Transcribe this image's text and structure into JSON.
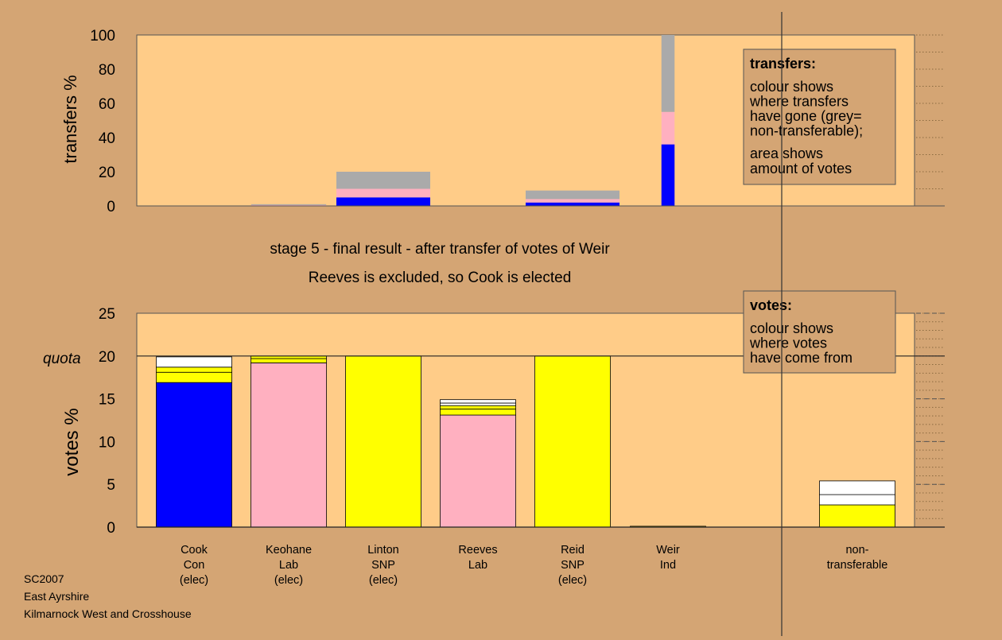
{
  "chart_data": [
    {
      "type": "bar",
      "stacked": true,
      "ylabel": "transfers %",
      "ylim": [
        0,
        100
      ],
      "yticks": [
        0,
        20,
        40,
        60,
        80,
        100
      ],
      "grid": "dotted horizontal",
      "columns": [
        "Cook",
        "Keohane",
        "Linton",
        "Reeves",
        "Reid",
        "Weir"
      ],
      "series_colors": {
        "Con": "#0000ff",
        "Lab": "#ffb0c0",
        "non-transferable": "#aaaaaa"
      },
      "bars": [
        {
          "column": "Cook",
          "width_votes": 0,
          "segments": []
        },
        {
          "column": "Keohane",
          "width_votes": 0.8,
          "segments": [
            {
              "color": "#ffb0c0",
              "from": 0,
              "to": 0.5
            },
            {
              "color": "#aaaaaa",
              "from": 0.5,
              "to": 1
            }
          ]
        },
        {
          "column": "Linton",
          "width_votes": 1,
          "segments": [
            {
              "color": "#0000ff",
              "from": 0,
              "to": 5
            },
            {
              "color": "#ffb0c0",
              "from": 5,
              "to": 10
            },
            {
              "color": "#aaaaaa",
              "from": 10,
              "to": 20
            }
          ]
        },
        {
          "column": "Reeves",
          "width_votes": 0,
          "segments": []
        },
        {
          "column": "Reid",
          "width_votes": 1,
          "segments": [
            {
              "color": "#0000ff",
              "from": 0,
              "to": 2
            },
            {
              "color": "#ffb0c0",
              "from": 2,
              "to": 4
            },
            {
              "color": "#aaaaaa",
              "from": 4,
              "to": 9
            }
          ]
        },
        {
          "column": "Weir",
          "width_votes": 0.14,
          "segments": [
            {
              "color": "#0000ff",
              "from": 0,
              "to": 36
            },
            {
              "color": "#ffb0c0",
              "from": 36,
              "to": 55
            },
            {
              "color": "#aaaaaa",
              "from": 55,
              "to": 100
            }
          ]
        }
      ],
      "legend_box": {
        "title": "transfers:",
        "lines1": [
          "colour shows",
          "where transfers",
          "have gone (grey=",
          "non-transferable);"
        ],
        "lines2": [
          "area shows",
          "amount of votes"
        ]
      }
    },
    {
      "type": "bar",
      "stacked": true,
      "ylabel": "votes %",
      "ylim": [
        0,
        25
      ],
      "yticks": [
        0,
        5,
        10,
        15,
        20,
        25
      ],
      "quota": 20,
      "quota_label": "quota",
      "grid": "dotted horizontal",
      "categories": [
        {
          "lines": [
            "Cook",
            "Con",
            "(elec)"
          ]
        },
        {
          "lines": [
            "Keohane",
            "Lab",
            "(elec)"
          ]
        },
        {
          "lines": [
            "Linton",
            "SNP",
            "(elec)"
          ]
        },
        {
          "lines": [
            "Reeves",
            "Lab"
          ]
        },
        {
          "lines": [
            "Reid",
            "SNP",
            "(elec)"
          ]
        },
        {
          "lines": [
            "Weir",
            "Ind"
          ]
        },
        {
          "lines": [
            "non-",
            "transferable"
          ]
        }
      ],
      "bars": [
        {
          "candidate": "Cook",
          "segments": [
            {
              "color": "#0000ff",
              "from": 0,
              "to": 16.9
            },
            {
              "color": "#ffff00",
              "from": 16.9,
              "to": 18.1
            },
            {
              "color": "#ffff00",
              "from": 18.1,
              "to": 18.7
            },
            {
              "color": "#ffffff",
              "from": 18.7,
              "to": 19.9
            }
          ]
        },
        {
          "candidate": "Keohane",
          "segments": [
            {
              "color": "#ffb0c0",
              "from": 0,
              "to": 19.2
            },
            {
              "color": "#ffff00",
              "from": 19.2,
              "to": 19.7
            },
            {
              "color": "#ffff00",
              "from": 19.7,
              "to": 20
            }
          ]
        },
        {
          "candidate": "Linton",
          "segments": [
            {
              "color": "#ffff00",
              "from": 0,
              "to": 20
            }
          ]
        },
        {
          "candidate": "Reeves",
          "segments": [
            {
              "color": "#ffb0c0",
              "from": 0,
              "to": 13.1
            },
            {
              "color": "#ffff00",
              "from": 13.1,
              "to": 13.8
            },
            {
              "color": "#ffff00",
              "from": 13.8,
              "to": 14.2
            },
            {
              "color": "#ffffff",
              "from": 14.2,
              "to": 14.5
            },
            {
              "color": "#ffffff",
              "from": 14.5,
              "to": 14.9
            }
          ]
        },
        {
          "candidate": "Reid",
          "segments": [
            {
              "color": "#ffff00",
              "from": 0,
              "to": 20
            }
          ]
        },
        {
          "candidate": "Weir",
          "segments": [
            {
              "color": "#ffff00",
              "from": 0,
              "to": 0.1
            }
          ]
        },
        {
          "candidate": "non-transferable",
          "segments": [
            {
              "color": "#ffff00",
              "from": 0,
              "to": 2.6
            },
            {
              "color": "#ffffff",
              "from": 2.6,
              "to": 3.8
            },
            {
              "color": "#ffffff",
              "from": 3.8,
              "to": 5.4
            }
          ]
        }
      ],
      "legend_box": {
        "title": "votes:",
        "lines": [
          "colour shows",
          "where votes",
          "have come from"
        ]
      }
    }
  ],
  "title_line1": "stage 5 - final result - after transfer of votes of Weir",
  "title_line2": "Reeves is excluded, so Cook is elected",
  "footer": [
    "SC2007",
    "East Ayrshire",
    "Kilmarnock West and Crosshouse"
  ],
  "colors": {
    "background": "#d4a574",
    "plot_area": "#ffcc88"
  }
}
